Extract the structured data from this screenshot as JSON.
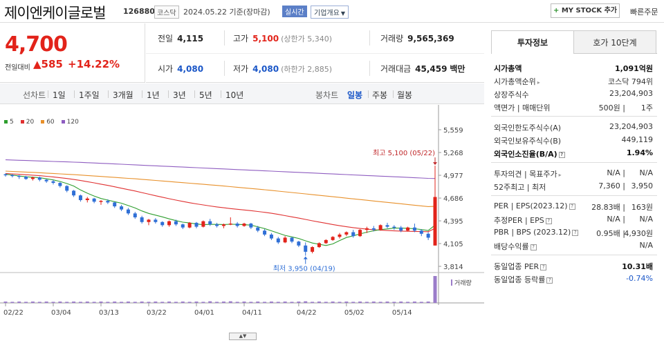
{
  "header": {
    "name": "제이엔케이글로벌",
    "code": "126880",
    "market": "코스닥",
    "date": "2024.05.22 기준(장마감)",
    "realtime": "실시간",
    "overview": "기업개요",
    "mystock": "MY STOCK 추가",
    "quick_order": "빠른주문"
  },
  "price": {
    "current": "4,700",
    "label": "전일대비",
    "change": "585",
    "percent": "+14.22%"
  },
  "stats": {
    "prev_label": "전일",
    "prev": "4,115",
    "high_label": "고가",
    "high": "5,100",
    "upper_limit": "(상한가 5,340)",
    "volume_label": "거래량",
    "volume": "9,565,369",
    "open_label": "시가",
    "open": "4,080",
    "low_label": "저가",
    "low": "4,080",
    "lower_limit": "(하한가 2,885)",
    "amount_label": "거래대금",
    "amount": "45,459",
    "amount_unit": "백만"
  },
  "toolbar": {
    "line_head": "선차트",
    "line_items": [
      "1일",
      "1주일",
      "3개월",
      "1년",
      "3년",
      "5년",
      "10년"
    ],
    "candle_head": "봉차트",
    "candle_items": [
      "일봉",
      "주봉",
      "월봉"
    ],
    "candle_active": "일봉"
  },
  "chart_data": {
    "type": "candlestick",
    "legend": [
      {
        "name": "5",
        "color": "#2e9e2e"
      },
      {
        "name": "20",
        "color": "#e03030"
      },
      {
        "name": "60",
        "color": "#e8902a"
      },
      {
        "name": "120",
        "color": "#8e5cc0"
      }
    ],
    "y_ticks": [
      "5,559",
      "5,268",
      "4,977",
      "4,686",
      "4,395",
      "4,105",
      "3,814"
    ],
    "y_range": [
      3814,
      5559
    ],
    "x_ticks": [
      "02/22",
      "03/04",
      "03/13",
      "03/22",
      "04/01",
      "04/11",
      "04/22",
      "05/02",
      "05/14"
    ],
    "max_label": "최고 5,100 (05/22)",
    "min_label": "최저 3,950 (04/19)",
    "volume_label": "거래량",
    "candles": [
      [
        4990,
        5000,
        4960,
        4980
      ],
      [
        4980,
        4990,
        4950,
        4970
      ],
      [
        4970,
        4980,
        4930,
        4960
      ],
      [
        4960,
        4970,
        4920,
        4930
      ],
      [
        4930,
        4960,
        4910,
        4950
      ],
      [
        4950,
        4960,
        4900,
        4920
      ],
      [
        4920,
        4930,
        4880,
        4900
      ],
      [
        4900,
        4920,
        4860,
        4880
      ],
      [
        4880,
        4890,
        4820,
        4840
      ],
      [
        4840,
        4850,
        4760,
        4780
      ],
      [
        4780,
        4790,
        4700,
        4720
      ],
      [
        4720,
        4730,
        4640,
        4660
      ],
      [
        4660,
        4700,
        4630,
        4680
      ],
      [
        4680,
        4690,
        4620,
        4640
      ],
      [
        4640,
        4660,
        4600,
        4650
      ],
      [
        4650,
        4670,
        4610,
        4630
      ],
      [
        4630,
        4640,
        4560,
        4580
      ],
      [
        4580,
        4600,
        4520,
        4540
      ],
      [
        4540,
        4560,
        4470,
        4490
      ],
      [
        4490,
        4510,
        4420,
        4440
      ],
      [
        4440,
        4460,
        4360,
        4380
      ],
      [
        4380,
        4420,
        4340,
        4410
      ],
      [
        4410,
        4430,
        4360,
        4380
      ],
      [
        4380,
        4390,
        4320,
        4340
      ],
      [
        4340,
        4400,
        4320,
        4390
      ],
      [
        4390,
        4410,
        4330,
        4350
      ],
      [
        4350,
        4360,
        4290,
        4310
      ],
      [
        4310,
        4380,
        4300,
        4370
      ],
      [
        4370,
        4380,
        4300,
        4320
      ],
      [
        4320,
        4400,
        4310,
        4390
      ],
      [
        4390,
        4420,
        4330,
        4350
      ],
      [
        4350,
        4370,
        4310,
        4330
      ],
      [
        4330,
        4360,
        4300,
        4350
      ],
      [
        4350,
        4440,
        4340,
        4360
      ],
      [
        4360,
        4380,
        4310,
        4330
      ],
      [
        4330,
        4370,
        4320,
        4360
      ],
      [
        4360,
        4370,
        4290,
        4310
      ],
      [
        4310,
        4330,
        4250,
        4270
      ],
      [
        4270,
        4290,
        4200,
        4220
      ],
      [
        4220,
        4240,
        4150,
        4170
      ],
      [
        4170,
        4190,
        4100,
        4120
      ],
      [
        4120,
        4200,
        4110,
        4180
      ],
      [
        4180,
        4190,
        4110,
        4130
      ],
      [
        4130,
        4140,
        4060,
        4080
      ],
      [
        4080,
        4120,
        3950,
        4000
      ],
      [
        4000,
        4070,
        3980,
        4060
      ],
      [
        4060,
        4120,
        4050,
        4110
      ],
      [
        4110,
        4160,
        4100,
        4150
      ],
      [
        4150,
        4200,
        4140,
        4190
      ],
      [
        4190,
        4240,
        4170,
        4220
      ],
      [
        4220,
        4260,
        4200,
        4250
      ],
      [
        4250,
        4280,
        4180,
        4200
      ],
      [
        4200,
        4290,
        4190,
        4280
      ],
      [
        4280,
        4320,
        4240,
        4300
      ],
      [
        4300,
        4330,
        4260,
        4280
      ],
      [
        4280,
        4350,
        4270,
        4340
      ],
      [
        4340,
        4370,
        4300,
        4320
      ],
      [
        4320,
        4340,
        4280,
        4310
      ],
      [
        4310,
        4330,
        4250,
        4270
      ],
      [
        4270,
        4320,
        4260,
        4310
      ],
      [
        4310,
        4360,
        4250,
        4270
      ],
      [
        4270,
        4290,
        4200,
        4230
      ],
      [
        4230,
        4250,
        4150,
        4180
      ],
      [
        4080,
        5100,
        4080,
        4700
      ]
    ],
    "ma5": [
      4990,
      4980,
      4968,
      4958,
      4952,
      4946,
      4932,
      4918,
      4898,
      4872,
      4840,
      4790,
      4748,
      4712,
      4680,
      4660,
      4640,
      4620,
      4590,
      4560,
      4522,
      4490,
      4468,
      4446,
      4420,
      4398,
      4378,
      4368,
      4354,
      4346,
      4350,
      4350,
      4348,
      4352,
      4350,
      4346,
      4340,
      4320,
      4296,
      4268,
      4238,
      4210,
      4190,
      4170,
      4140,
      4112,
      4096,
      4080,
      4100,
      4144,
      4182,
      4204,
      4228,
      4250,
      4268,
      4284,
      4292,
      4302,
      4302,
      4300,
      4294,
      4284,
      4272,
      4340
    ],
    "ma20": [
      5000,
      4995,
      4990,
      4984,
      4978,
      4972,
      4964,
      4956,
      4946,
      4936,
      4924,
      4910,
      4895,
      4880,
      4864,
      4848,
      4830,
      4812,
      4794,
      4776,
      4756,
      4736,
      4716,
      4697,
      4678,
      4660,
      4643,
      4627,
      4612,
      4598,
      4585,
      4573,
      4562,
      4552,
      4543,
      4534,
      4525,
      4515,
      4504,
      4492,
      4478,
      4462,
      4446,
      4430,
      4413,
      4396,
      4380,
      4364,
      4348,
      4333,
      4320,
      4308,
      4298,
      4289,
      4282,
      4276,
      4271,
      4267,
      4264,
      4262,
      4260,
      4258,
      4256,
      4300
    ],
    "ma60": [
      5030,
      5026,
      5022,
      5018,
      5014,
      5010,
      5005,
      5000,
      4995,
      4990,
      4985,
      4980,
      4974,
      4968,
      4962,
      4956,
      4950,
      4944,
      4938,
      4932,
      4925,
      4918,
      4911,
      4904,
      4897,
      4890,
      4883,
      4876,
      4869,
      4862,
      4855,
      4848,
      4840,
      4832,
      4824,
      4816,
      4808,
      4800,
      4792,
      4784,
      4775,
      4766,
      4757,
      4748,
      4739,
      4730,
      4721,
      4712,
      4703,
      4694,
      4685,
      4676,
      4667,
      4658,
      4649,
      4640,
      4631,
      4622,
      4613,
      4604,
      4595,
      4586,
      4577,
      4580
    ],
    "ma120": [
      5175,
      5172,
      5169,
      5166,
      5163,
      5160,
      5157,
      5154,
      5151,
      5148,
      5145,
      5142,
      5138,
      5134,
      5130,
      5126,
      5122,
      5118,
      5114,
      5110,
      5106,
      5102,
      5098,
      5094,
      5090,
      5086,
      5082,
      5078,
      5074,
      5070,
      5066,
      5062,
      5058,
      5054,
      5050,
      5046,
      5042,
      5038,
      5034,
      5030,
      5026,
      5022,
      5018,
      5014,
      5010,
      5006,
      5002,
      4998,
      4994,
      4990,
      4986,
      4982,
      4978,
      4974,
      4970,
      4966,
      4962,
      4958,
      4954,
      4950,
      4946,
      4942,
      4938,
      4936
    ],
    "volume": [
      0.05,
      0.04,
      0.05,
      0.04,
      0.05,
      0.04,
      0.05,
      0.04,
      0.05,
      0.04,
      0.05,
      0.04,
      0.05,
      0.04,
      0.05,
      0.04,
      0.05,
      0.04,
      0.05,
      0.04,
      0.05,
      0.04,
      0.05,
      0.04,
      0.05,
      0.04,
      0.05,
      0.04,
      0.05,
      0.04,
      0.06,
      0.04,
      0.05,
      0.06,
      0.04,
      0.05,
      0.04,
      0.05,
      0.04,
      0.05,
      0.04,
      0.05,
      0.04,
      0.05,
      0.06,
      0.04,
      0.05,
      0.04,
      0.05,
      0.04,
      0.05,
      0.04,
      0.05,
      0.04,
      0.05,
      0.04,
      0.05,
      0.04,
      0.05,
      0.04,
      0.05,
      0.04,
      0.05,
      1.0
    ]
  },
  "panel": {
    "tab1": "투자정보",
    "tab2": "호가 10단계",
    "rows": [
      {
        "k": "시가총액",
        "v": "1,091억원",
        "kb": true,
        "vb": true
      },
      {
        "k": "시가총액순위",
        "v": "코스닥 794위",
        "arrow": true
      },
      {
        "k": "상장주식수",
        "v": "23,204,903"
      },
      {
        "k": "액면가 | 매매단위",
        "v1": "500원",
        "v": "1주"
      },
      {
        "div": true
      },
      {
        "k": "외국인한도주식수(A)",
        "v": "23,204,903"
      },
      {
        "k": "외국인보유주식수(B)",
        "v": "449,119"
      },
      {
        "k": "외국인소진율(B/A)",
        "v": "1.94%",
        "kb": true,
        "vb": true,
        "q": true
      },
      {
        "div": true
      },
      {
        "k": "투자의견 | 목표주가",
        "v1": "N/A",
        "v": "N/A",
        "arrow": true
      },
      {
        "k": "52주최고 | 최저",
        "v1": "7,360",
        "v": "3,950"
      },
      {
        "div": true
      },
      {
        "k": "PER | EPS(2023.12)",
        "v1": "28.83배",
        "v": "163원",
        "q": true
      },
      {
        "k": "추정PER | EPS",
        "v1": "N/A",
        "v": "N/A",
        "q": true
      },
      {
        "k": "PBR | BPS (2023.12)",
        "v1": "0.95배",
        "v": "4,930원",
        "q": true
      },
      {
        "k": "배당수익률",
        "v": "N/A",
        "q": true
      },
      {
        "div": true
      },
      {
        "k": "동일업종 PER",
        "v": "10.31배",
        "vb": true,
        "q": true
      },
      {
        "k": "동일업종 등락률",
        "v": "-0.74%",
        "blue": true,
        "q": true
      }
    ]
  }
}
